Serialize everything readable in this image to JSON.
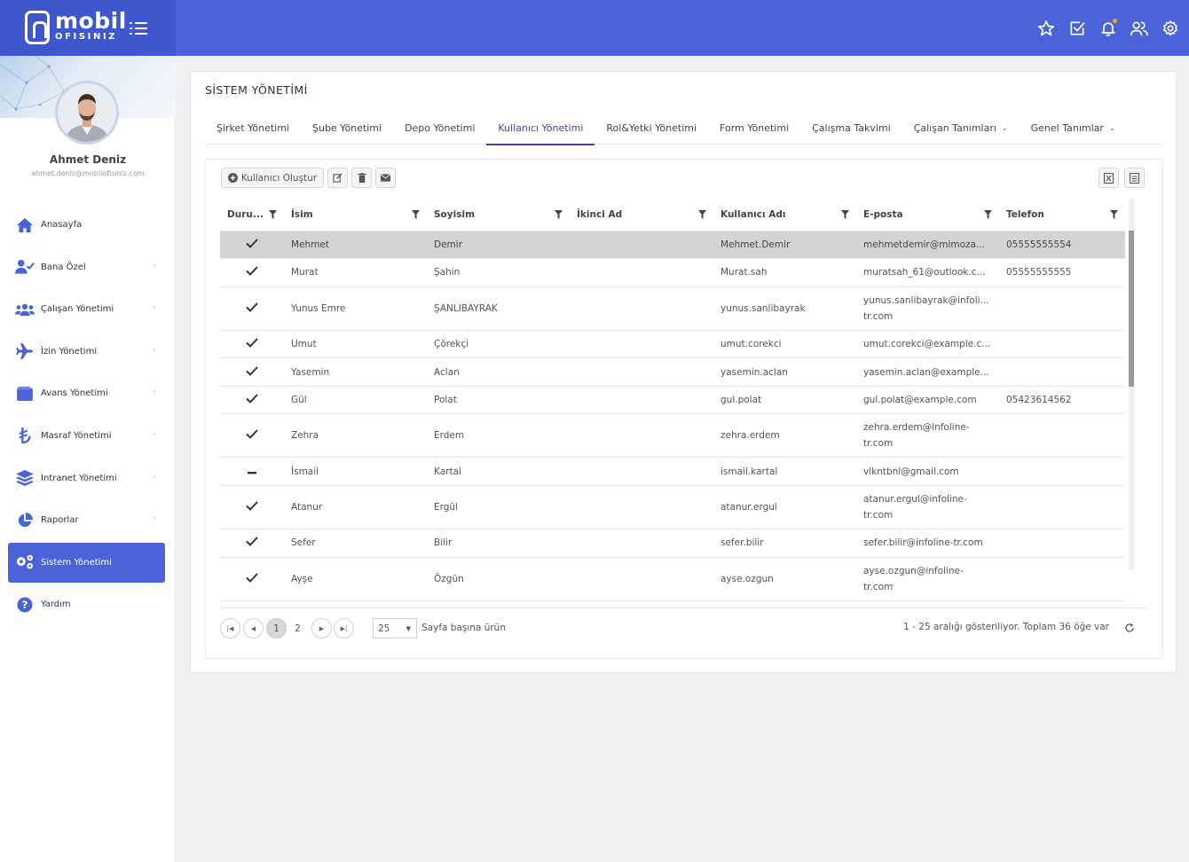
{
  "logo": {
    "main": "mobil",
    "sub": "OFISINIZ"
  },
  "profile": {
    "name": "Ahmet Deniz",
    "email": "ahmet.deniz@mobilofisiniz.com"
  },
  "menu": [
    {
      "label": "Anasayfa",
      "icon": "home-icon",
      "has_children": false
    },
    {
      "label": "Bana Özel",
      "icon": "user-check-icon",
      "has_children": true
    },
    {
      "label": "Çalışan Yönetimi",
      "icon": "users-icon",
      "has_children": true
    },
    {
      "label": "İzin Yönetimi",
      "icon": "plane-icon",
      "has_children": true
    },
    {
      "label": "Avans Yönetimi",
      "icon": "wallet-icon",
      "has_children": true
    },
    {
      "label": "Masraf Yönetimi",
      "icon": "lira-icon",
      "has_children": true
    },
    {
      "label": "Intranet Yönetimi",
      "icon": "layers-icon",
      "has_children": true
    },
    {
      "label": "Raporlar",
      "icon": "pie-chart-icon",
      "has_children": true
    },
    {
      "label": "Sistem Yönetimi",
      "icon": "gears-icon",
      "has_children": false,
      "active": true
    },
    {
      "label": "Yardım",
      "icon": "help-icon",
      "has_children": false
    }
  ],
  "page": {
    "title": "SİSTEM YÖNETİMİ"
  },
  "tabs": [
    {
      "label": "Şirket Yönetimi"
    },
    {
      "label": "Şube Yönetimi"
    },
    {
      "label": "Depo Yönetimi"
    },
    {
      "label": "Kullanıcı Yönetimi",
      "active": true
    },
    {
      "label": "Rol&Yetki Yönetimi"
    },
    {
      "label": "Form Yönetimi"
    },
    {
      "label": "Çalışma Takvimi"
    },
    {
      "label": "Çalışan Tanımları",
      "dropdown": true
    },
    {
      "label": "Genel Tanımlar",
      "dropdown": true
    }
  ],
  "toolbar": {
    "create_label": "Kullanıcı Oluştur"
  },
  "columns": [
    "Duru...",
    "İsim",
    "Soyisim",
    "İkinci Ad",
    "Kullanıcı Adı",
    "E-posta",
    "Telefon"
  ],
  "rows": [
    {
      "status": "check",
      "first": "Mehmet",
      "last": "Demir",
      "middle": "",
      "username": "Mehmet.Demir",
      "email": "mehmetdemir@mimoza...",
      "phone": "05555555554",
      "selected": true
    },
    {
      "status": "check",
      "first": "Murat",
      "last": "Şahin",
      "middle": "",
      "username": "Murat.sah",
      "email": "muratsah_61@outlook.c...",
      "phone": "05555555555"
    },
    {
      "status": "check",
      "first": "Yunus Emre",
      "last": "ŞANLIBAYRAK",
      "middle": "",
      "username": "yunus.sanlibayrak",
      "email": "yunus.sanlibayrak@infoli... tr.com",
      "phone": "",
      "tall": true
    },
    {
      "status": "check",
      "first": "Umut",
      "last": "Çörekçi",
      "middle": "",
      "username": "umut.corekci",
      "email": "umut.corekci@example.c...",
      "phone": ""
    },
    {
      "status": "check",
      "first": "Yasemin",
      "last": "Aclan",
      "middle": "",
      "username": "yasemin.aclan",
      "email": "yasemin.aclan@example...",
      "phone": ""
    },
    {
      "status": "check",
      "first": "Gül",
      "last": "Polat",
      "middle": "",
      "username": "gul.polat",
      "email": "gul.polat@example.com",
      "phone": "05423614562"
    },
    {
      "status": "check",
      "first": "Zehra",
      "last": "Erdem",
      "middle": "",
      "username": "zehra.erdem",
      "email": "zehra.erdem@infoline- tr.com",
      "phone": "",
      "tall": true
    },
    {
      "status": "dash",
      "first": "İsmail",
      "last": "Kartal",
      "middle": "",
      "username": "ismail.kartal",
      "email": "vlkntbnl@gmail.com",
      "phone": ""
    },
    {
      "status": "check",
      "first": "Atanur",
      "last": "Ergül",
      "middle": "",
      "username": "atanur.ergul",
      "email": "atanur.ergul@infoline- tr.com",
      "phone": "",
      "tall": true
    },
    {
      "status": "check",
      "first": "Sefer",
      "last": "Bilir",
      "middle": "",
      "username": "sefer.bilir",
      "email": "sefer.bilir@infoline-tr.com",
      "phone": ""
    },
    {
      "status": "check",
      "first": "Ayşe",
      "last": "Özgün",
      "middle": "",
      "username": "ayse.ozgun",
      "email": "ayse.ozgun@infoline- tr.com",
      "phone": "",
      "tall": true
    }
  ],
  "pager": {
    "pages": [
      "1",
      "2"
    ],
    "current": "1",
    "page_size": "25",
    "page_size_label": "Sayfa başına ürün",
    "info": "1 - 25 aralığı gösteriliyor. Toplam 36 öğe var"
  }
}
